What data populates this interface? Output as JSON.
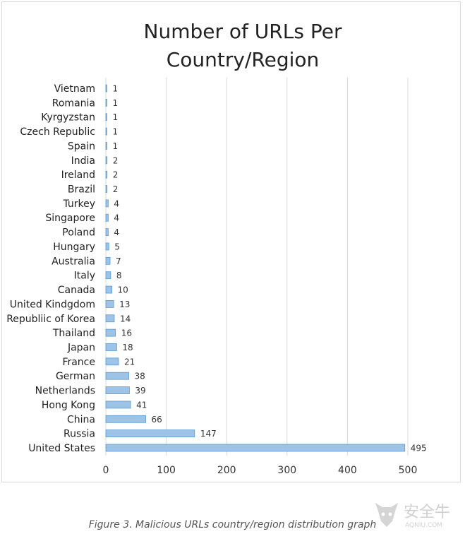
{
  "chart_data": {
    "type": "bar",
    "orientation": "horizontal",
    "title_lines": [
      "Number of URLs Per",
      "Country/Region"
    ],
    "xlabel": "",
    "ylabel": "",
    "xlim": [
      0,
      500
    ],
    "x_ticks": [
      0,
      100,
      200,
      300,
      400,
      500
    ],
    "grid": true,
    "legend": "none",
    "bar_color": "#9dc3e6",
    "bar_edge_color": "#5b9bd5",
    "categories": [
      "Vietnam",
      "Romania",
      "Kyrgyzstan",
      "Czech Republic",
      "Spain",
      "India",
      "Ireland",
      "Brazil",
      "Turkey",
      "Singapore",
      "Poland",
      "Hungary",
      "Australia",
      "Italy",
      "Canada",
      "United Kindgdom",
      "Republiic of Korea",
      "Thailand",
      "Japan",
      "France",
      "German",
      "Netherlands",
      "Hong Kong",
      "China",
      "Russia",
      "United States"
    ],
    "values": [
      1,
      1,
      1,
      1,
      1,
      2,
      2,
      2,
      4,
      4,
      4,
      5,
      7,
      8,
      10,
      13,
      14,
      16,
      18,
      21,
      38,
      39,
      41,
      66,
      147,
      495
    ]
  },
  "caption": "Figure 3. Malicious URLs country/region distribution graph",
  "watermark": {
    "text": "安全牛",
    "subtext": "AQNIU.COM"
  }
}
